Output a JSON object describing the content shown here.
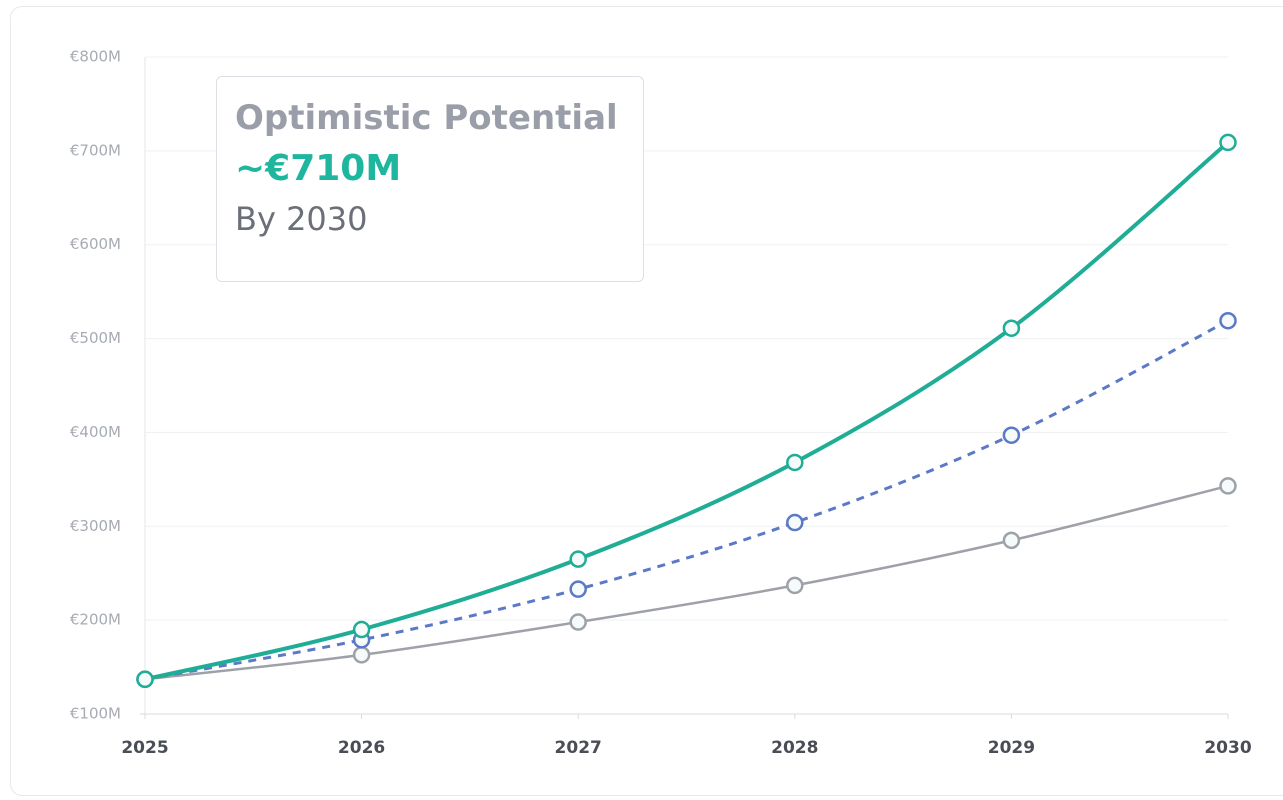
{
  "chart_data": {
    "type": "line",
    "categories": [
      "2025",
      "2026",
      "2027",
      "2028",
      "2029",
      "2030"
    ],
    "series": [
      {
        "color": "#9ea1a7",
        "values": [
          137,
          163,
          198,
          237,
          285,
          343
        ]
      },
      {
        "color": "#5b79c8",
        "dash": true,
        "values": [
          137,
          179,
          233,
          304,
          397,
          519
        ]
      },
      {
        "color": "#1fad96",
        "values": [
          137,
          190,
          265,
          368,
          511,
          709
        ]
      }
    ],
    "ylim": [
      100,
      800
    ],
    "yticks": [
      {
        "value": 100,
        "label": "€100M"
      },
      {
        "value": 200,
        "label": "€200M"
      },
      {
        "value": 300,
        "label": "€300M"
      },
      {
        "value": 400,
        "label": "€400M"
      },
      {
        "value": 500,
        "label": "€500M"
      },
      {
        "value": 600,
        "label": "€600M"
      },
      {
        "value": 700,
        "label": "€700M"
      },
      {
        "value": 800,
        "label": "€800M"
      }
    ],
    "grid": true,
    "smooth": true,
    "annotation": {
      "title": "Optimistic Potential",
      "value": "~€710M",
      "note": "By 2030"
    }
  }
}
